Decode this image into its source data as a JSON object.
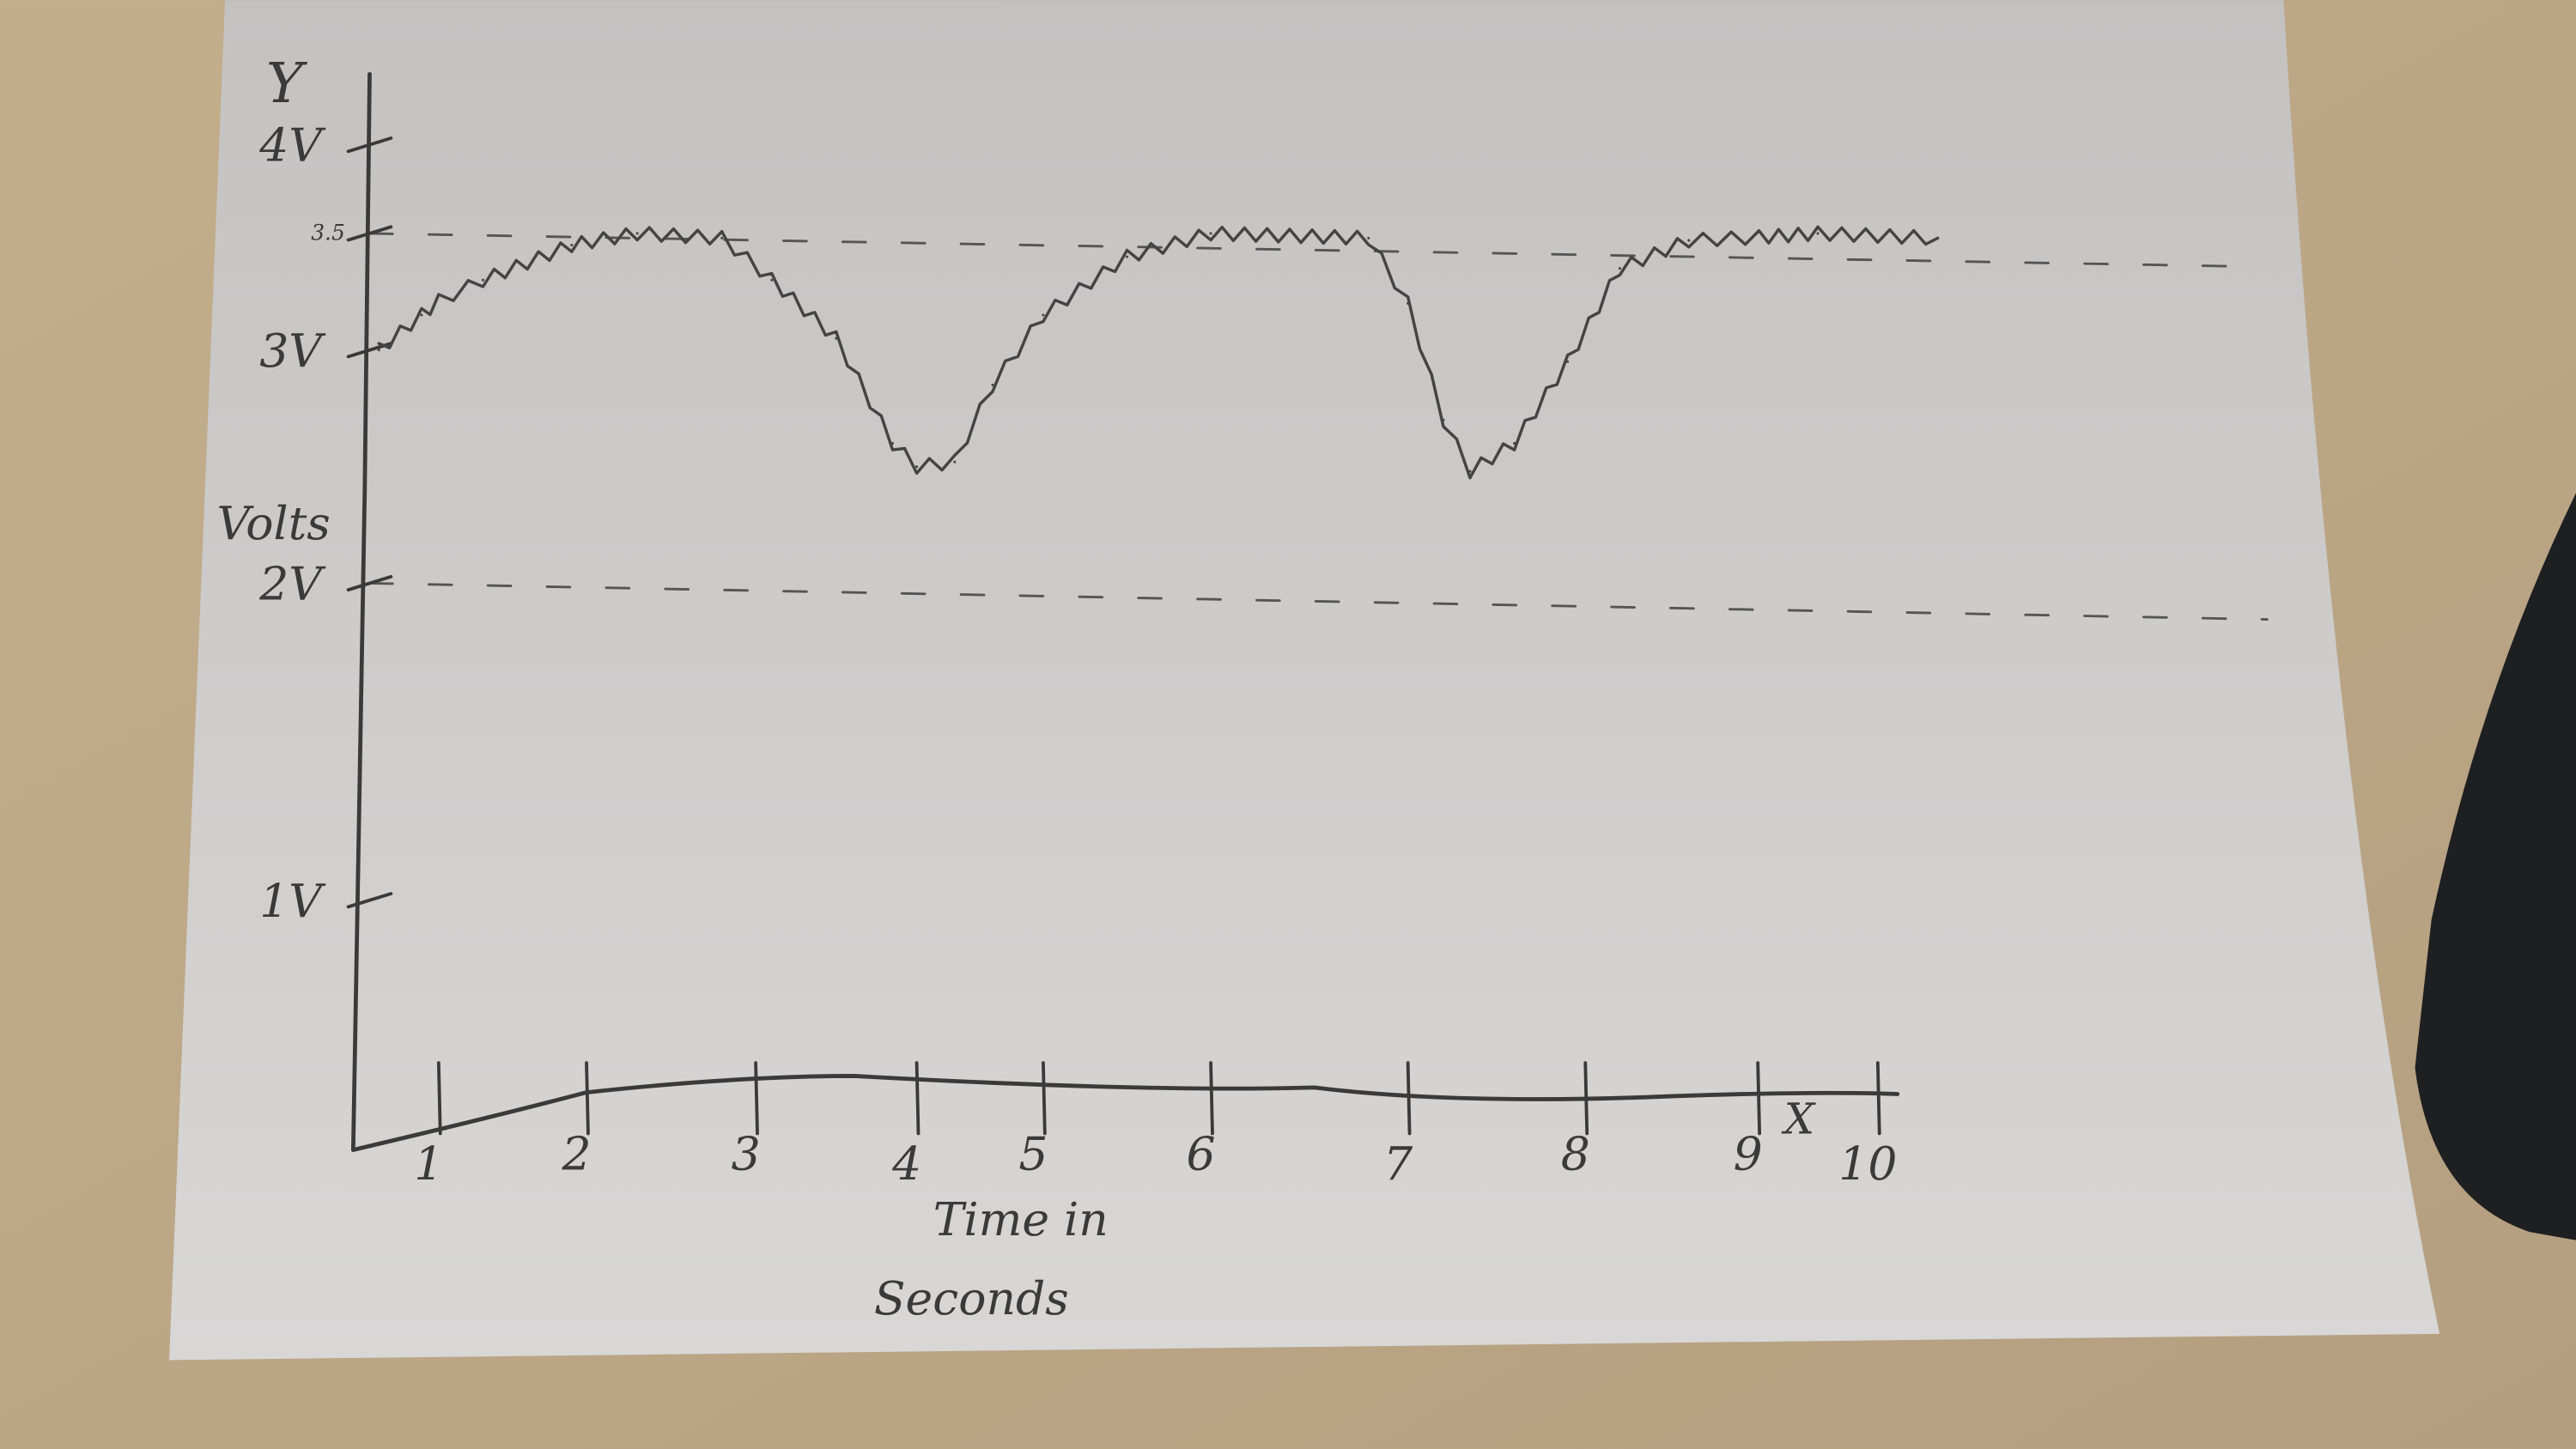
{
  "chart_data": {
    "type": "line",
    "style": "hand-drawn on paper",
    "title": "",
    "xlabel": "Time in Seconds",
    "ylabel": "Volts",
    "x_axis_letter": "X",
    "y_axis_letter": "Y",
    "xlim": [
      0,
      10
    ],
    "ylim": [
      0,
      4
    ],
    "x_ticks": [
      "1",
      "2",
      "3",
      "4",
      "5",
      "6",
      "7",
      "8",
      "9",
      "10"
    ],
    "y_ticks": [
      {
        "value": 1,
        "label": "1V"
      },
      {
        "value": 2,
        "label": "2V"
      },
      {
        "value": 3,
        "label": "3V"
      },
      {
        "value": 3.5,
        "label": "3.5"
      },
      {
        "value": 4,
        "label": "4V"
      }
    ],
    "reference_lines": [
      {
        "value": 3.5,
        "style": "dashed"
      },
      {
        "value": 2,
        "style": "dashed"
      }
    ],
    "grid": false,
    "legend": "none",
    "series": [
      {
        "x": [
          0.3,
          0.8,
          1.3,
          1.9,
          2.3,
          2.8,
          3.1,
          3.5,
          3.85,
          4.0,
          4.3,
          4.6,
          5.0,
          5.5,
          6.0,
          6.8,
          7.0,
          7.2,
          7.35,
          7.6,
          7.9,
          8.2,
          8.6,
          9.5,
          10.5
        ],
        "y": [
          3.0,
          3.15,
          3.3,
          3.45,
          3.5,
          3.48,
          3.3,
          3.05,
          2.6,
          2.5,
          2.52,
          2.85,
          3.15,
          3.4,
          3.5,
          3.48,
          3.2,
          2.7,
          2.48,
          2.6,
          2.95,
          3.35,
          3.47,
          3.5,
          3.48
        ]
      }
    ],
    "colors": {
      "ink": "#3a3a3a",
      "paper": "#cfcdcb",
      "desk": "#bda98a",
      "device": "#1e1f21"
    }
  }
}
